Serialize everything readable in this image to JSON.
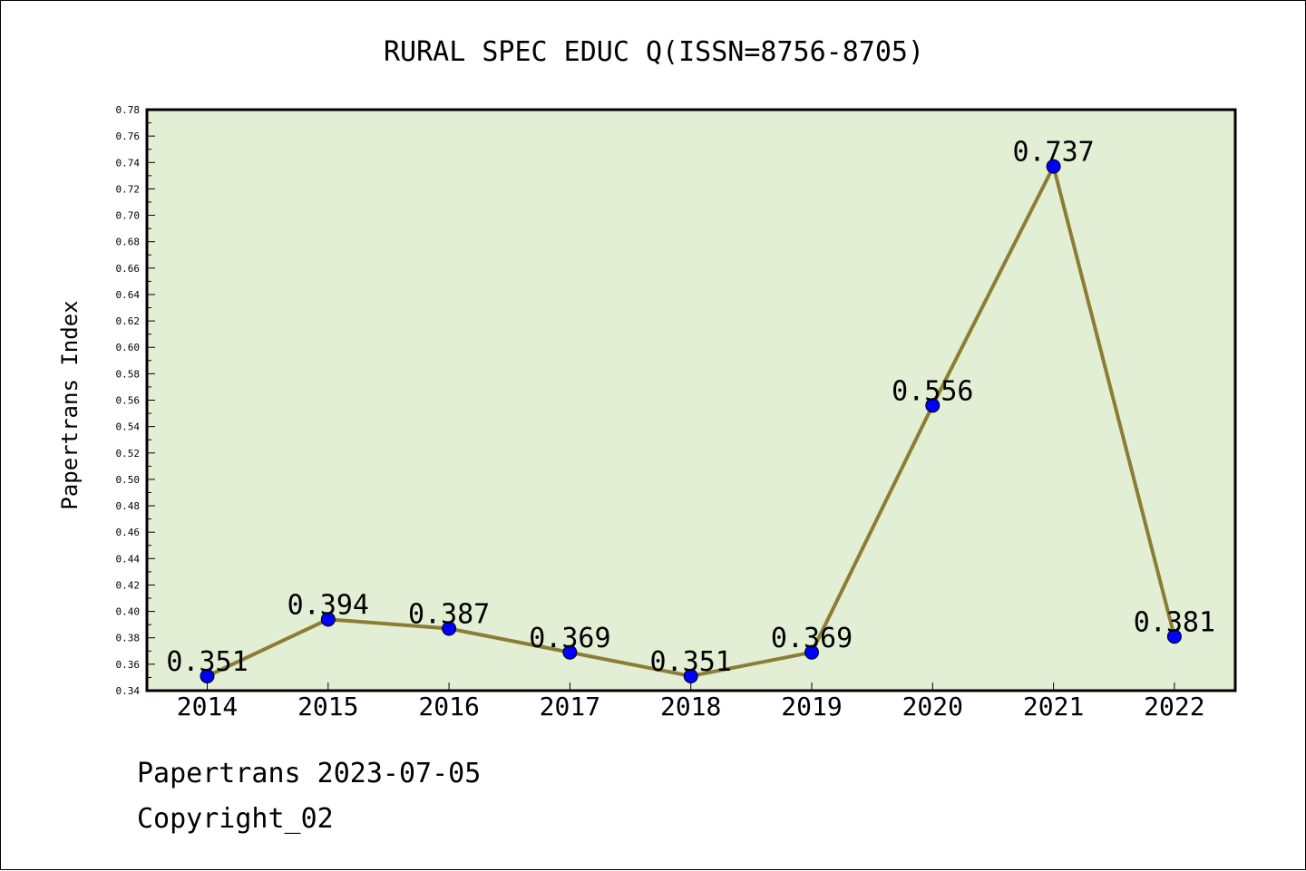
{
  "chart_data": {
    "type": "line",
    "title": "RURAL SPEC EDUC Q(ISSN=8756-8705)",
    "xlabel": "",
    "ylabel": "Papertrans Index",
    "categories": [
      "2014",
      "2015",
      "2016",
      "2017",
      "2018",
      "2019",
      "2020",
      "2021",
      "2022"
    ],
    "values": [
      0.351,
      0.394,
      0.387,
      0.369,
      0.351,
      0.369,
      0.556,
      0.737,
      0.381
    ],
    "data_labels": [
      "0.351",
      "0.394",
      "0.387",
      "0.369",
      "0.351",
      "0.369",
      "0.556",
      "0.737",
      "0.381"
    ],
    "ylim": [
      0.34,
      0.78
    ],
    "y_ticks": [
      "0.34",
      "0.36",
      "0.38",
      "0.40",
      "0.42",
      "0.44",
      "0.46",
      "0.48",
      "0.50",
      "0.52",
      "0.54",
      "0.56",
      "0.58",
      "0.60",
      "0.62",
      "0.64",
      "0.66",
      "0.68",
      "0.70",
      "0.72",
      "0.74",
      "0.76",
      "0.78"
    ],
    "grid": false,
    "legend": "none",
    "colors": {
      "plot_background": "#e2efd5",
      "line": "#8b7d33",
      "marker": "#0000ff"
    }
  },
  "footer": {
    "line1": "Papertrans 2023-07-05",
    "line2": "Copyright_02"
  }
}
